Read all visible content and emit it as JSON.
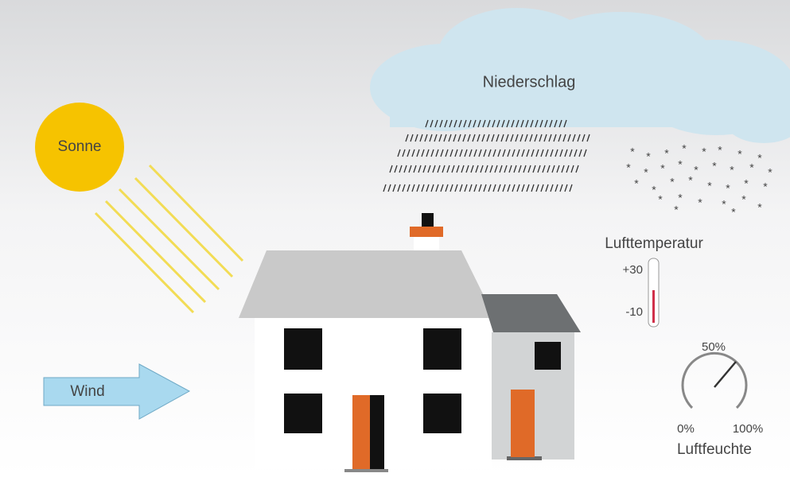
{
  "sun": {
    "label": "Sonne"
  },
  "wind": {
    "label": "Wind"
  },
  "precipitation": {
    "label": "Niederschlag"
  },
  "temperature": {
    "label": "Lufttemperatur",
    "high": "+30",
    "low": "-10"
  },
  "humidity": {
    "label": "Luftfeuchte",
    "mid": "50%",
    "min": "0%",
    "max": "100%"
  }
}
